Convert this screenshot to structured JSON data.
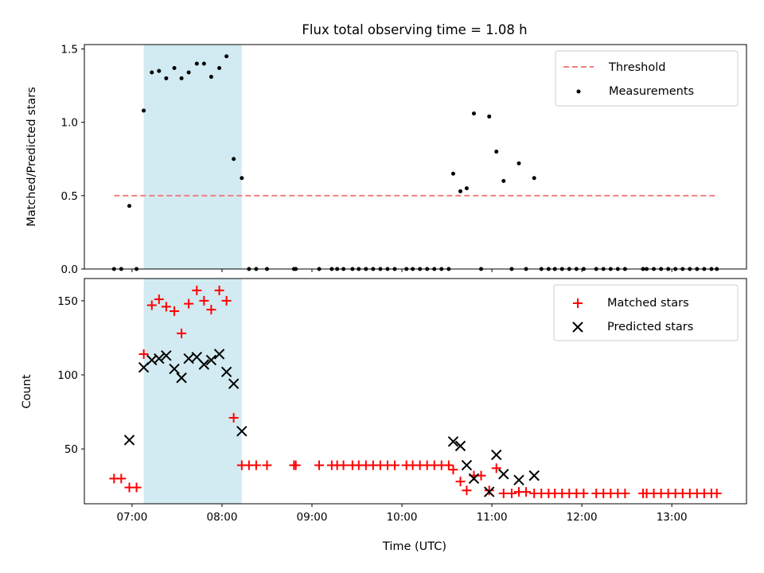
{
  "figure_title": "Flux total observing time = 1.08 h",
  "xlabel": "Time (UTC)",
  "x_ticks": [
    "07:00",
    "08:00",
    "09:00",
    "10:00",
    "11:00",
    "12:00",
    "13:00"
  ],
  "colors": {
    "threshold": "#f08080",
    "measurements": "#000000",
    "matched": "#ff0000",
    "predicted": "#000000",
    "highlight": "#add8e6"
  },
  "chart_data": [
    {
      "type": "scatter",
      "panel": "top",
      "x_unit": "hours UTC",
      "xlim": [
        6.47,
        13.83
      ],
      "ylim": [
        0,
        1.53
      ],
      "ylabel": "Matched/Predicted stars",
      "y_ticks": [
        0.0,
        0.5,
        1.0,
        1.5
      ],
      "grid": false,
      "legend": "top-right",
      "highlight_band": [
        7.13,
        8.22
      ],
      "threshold": {
        "name": "Threshold",
        "y": 0.5,
        "x_range": [
          6.8,
          13.5
        ]
      },
      "series": [
        {
          "name": "Measurements",
          "points": [
            [
              6.8,
              0
            ],
            [
              6.88,
              0
            ],
            [
              6.97,
              0.43
            ],
            [
              7.05,
              0
            ],
            [
              7.13,
              1.08
            ],
            [
              7.22,
              1.34
            ],
            [
              7.3,
              1.35
            ],
            [
              7.38,
              1.3
            ],
            [
              7.47,
              1.37
            ],
            [
              7.55,
              1.3
            ],
            [
              7.63,
              1.34
            ],
            [
              7.72,
              1.4
            ],
            [
              7.8,
              1.4
            ],
            [
              7.88,
              1.31
            ],
            [
              7.97,
              1.37
            ],
            [
              8.05,
              1.45
            ],
            [
              8.13,
              0.75
            ],
            [
              8.22,
              0.62
            ],
            [
              8.3,
              0
            ],
            [
              8.38,
              0
            ],
            [
              8.5,
              0
            ],
            [
              8.8,
              0
            ],
            [
              8.82,
              0
            ],
            [
              9.08,
              0
            ],
            [
              9.22,
              0
            ],
            [
              9.28,
              0
            ],
            [
              9.35,
              0
            ],
            [
              9.45,
              0
            ],
            [
              9.52,
              0
            ],
            [
              9.6,
              0
            ],
            [
              9.68,
              0
            ],
            [
              9.76,
              0
            ],
            [
              9.84,
              0
            ],
            [
              9.92,
              0
            ],
            [
              10.05,
              0
            ],
            [
              10.12,
              0
            ],
            [
              10.2,
              0
            ],
            [
              10.28,
              0
            ],
            [
              10.36,
              0
            ],
            [
              10.44,
              0
            ],
            [
              10.52,
              0
            ],
            [
              10.57,
              0.65
            ],
            [
              10.65,
              0.53
            ],
            [
              10.72,
              0.55
            ],
            [
              10.8,
              1.06
            ],
            [
              10.88,
              0
            ],
            [
              10.97,
              1.04
            ],
            [
              11.05,
              0.8
            ],
            [
              11.13,
              0.6
            ],
            [
              11.22,
              0
            ],
            [
              11.3,
              0.72
            ],
            [
              11.38,
              0
            ],
            [
              11.47,
              0.62
            ],
            [
              11.55,
              0
            ],
            [
              11.63,
              0
            ],
            [
              11.7,
              0
            ],
            [
              11.78,
              0
            ],
            [
              11.86,
              0
            ],
            [
              11.94,
              0
            ],
            [
              12.02,
              0
            ],
            [
              12.16,
              0
            ],
            [
              12.24,
              0
            ],
            [
              12.32,
              0
            ],
            [
              12.4,
              0
            ],
            [
              12.48,
              0
            ],
            [
              12.68,
              0
            ],
            [
              12.72,
              0
            ],
            [
              12.8,
              0
            ],
            [
              12.88,
              0
            ],
            [
              12.96,
              0
            ],
            [
              13.04,
              0
            ],
            [
              13.12,
              0
            ],
            [
              13.2,
              0
            ],
            [
              13.28,
              0
            ],
            [
              13.36,
              0
            ],
            [
              13.44,
              0
            ],
            [
              13.5,
              0
            ]
          ]
        }
      ]
    },
    {
      "type": "scatter",
      "panel": "bottom",
      "x_unit": "hours UTC",
      "xlim": [
        6.47,
        13.83
      ],
      "ylim": [
        13,
        165
      ],
      "ylabel": "Count",
      "y_ticks": [
        50,
        100,
        150
      ],
      "grid": false,
      "legend": "top-right",
      "highlight_band": [
        7.13,
        8.22
      ],
      "series": [
        {
          "name": "Matched stars",
          "marker": "plus",
          "points": [
            [
              6.8,
              30
            ],
            [
              6.88,
              30
            ],
            [
              6.97,
              24
            ],
            [
              7.05,
              24
            ],
            [
              7.13,
              114
            ],
            [
              7.22,
              147
            ],
            [
              7.3,
              151
            ],
            [
              7.38,
              146
            ],
            [
              7.47,
              143
            ],
            [
              7.55,
              128
            ],
            [
              7.63,
              148
            ],
            [
              7.72,
              157
            ],
            [
              7.8,
              150
            ],
            [
              7.88,
              144
            ],
            [
              7.97,
              157
            ],
            [
              8.05,
              150
            ],
            [
              8.13,
              71
            ],
            [
              8.22,
              39
            ],
            [
              8.3,
              39
            ],
            [
              8.38,
              39
            ],
            [
              8.5,
              39
            ],
            [
              8.8,
              39
            ],
            [
              8.82,
              39
            ],
            [
              9.08,
              39
            ],
            [
              9.22,
              39
            ],
            [
              9.28,
              39
            ],
            [
              9.35,
              39
            ],
            [
              9.45,
              39
            ],
            [
              9.52,
              39
            ],
            [
              9.6,
              39
            ],
            [
              9.68,
              39
            ],
            [
              9.76,
              39
            ],
            [
              9.84,
              39
            ],
            [
              9.92,
              39
            ],
            [
              10.05,
              39
            ],
            [
              10.12,
              39
            ],
            [
              10.2,
              39
            ],
            [
              10.28,
              39
            ],
            [
              10.36,
              39
            ],
            [
              10.44,
              39
            ],
            [
              10.52,
              39
            ],
            [
              10.57,
              36
            ],
            [
              10.65,
              28
            ],
            [
              10.72,
              22
            ],
            [
              10.8,
              32
            ],
            [
              10.88,
              32
            ],
            [
              10.97,
              22
            ],
            [
              11.05,
              37
            ],
            [
              11.13,
              20
            ],
            [
              11.22,
              20
            ],
            [
              11.3,
              21
            ],
            [
              11.38,
              21
            ],
            [
              11.47,
              20
            ],
            [
              11.55,
              20
            ],
            [
              11.63,
              20
            ],
            [
              11.7,
              20
            ],
            [
              11.78,
              20
            ],
            [
              11.86,
              20
            ],
            [
              11.94,
              20
            ],
            [
              12.02,
              20
            ],
            [
              12.16,
              20
            ],
            [
              12.24,
              20
            ],
            [
              12.32,
              20
            ],
            [
              12.4,
              20
            ],
            [
              12.48,
              20
            ],
            [
              12.68,
              20
            ],
            [
              12.72,
              20
            ],
            [
              12.8,
              20
            ],
            [
              12.88,
              20
            ],
            [
              12.96,
              20
            ],
            [
              13.04,
              20
            ],
            [
              13.12,
              20
            ],
            [
              13.2,
              20
            ],
            [
              13.28,
              20
            ],
            [
              13.36,
              20
            ],
            [
              13.44,
              20
            ],
            [
              13.5,
              20
            ]
          ]
        },
        {
          "name": "Predicted stars",
          "marker": "x",
          "points": [
            [
              6.97,
              56
            ],
            [
              7.13,
              105
            ],
            [
              7.22,
              110
            ],
            [
              7.3,
              111
            ],
            [
              7.38,
              113
            ],
            [
              7.47,
              104
            ],
            [
              7.55,
              98
            ],
            [
              7.63,
              111
            ],
            [
              7.72,
              112
            ],
            [
              7.8,
              107
            ],
            [
              7.88,
              110
            ],
            [
              7.97,
              114
            ],
            [
              8.05,
              102
            ],
            [
              8.13,
              94
            ],
            [
              8.22,
              62
            ],
            [
              10.57,
              55
            ],
            [
              10.65,
              52
            ],
            [
              10.72,
              39
            ],
            [
              10.8,
              30
            ],
            [
              10.97,
              21
            ],
            [
              11.05,
              46
            ],
            [
              11.13,
              33
            ],
            [
              11.3,
              29
            ],
            [
              11.47,
              32
            ]
          ]
        }
      ]
    }
  ]
}
